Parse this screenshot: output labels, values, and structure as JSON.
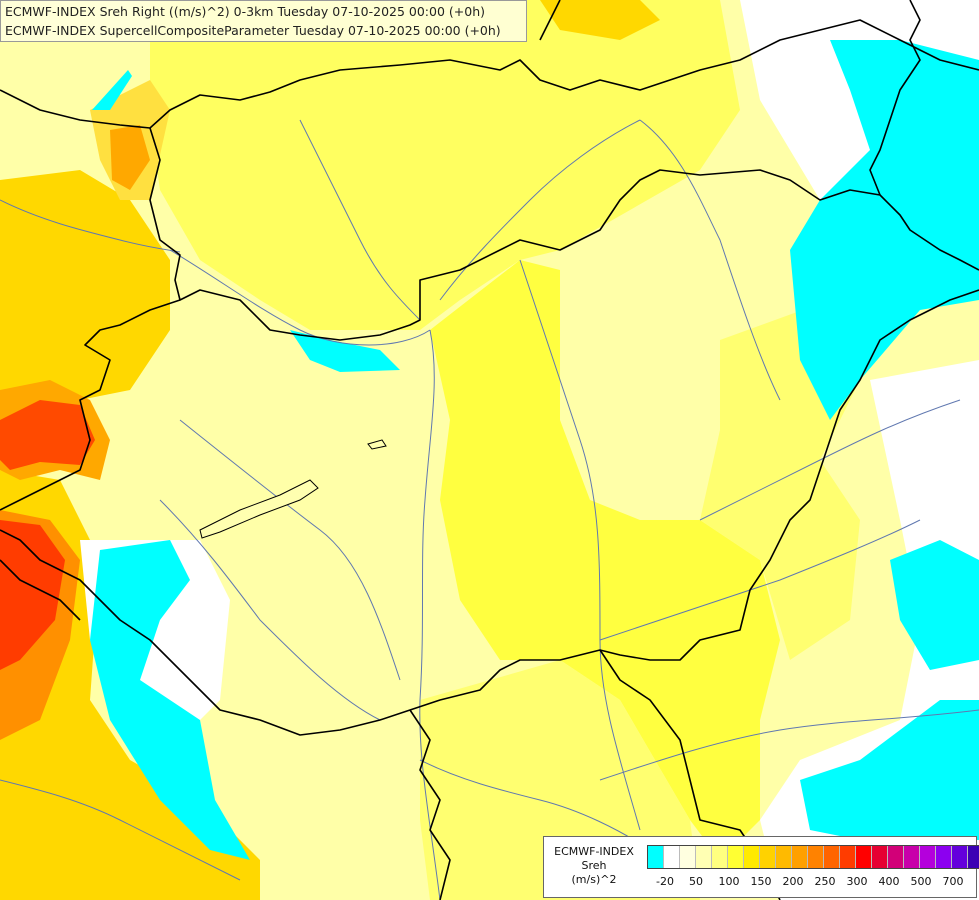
{
  "header": {
    "line1": "ECMWF-INDEX Sreh Right ((m/s)^2) 0-3km Tuesday 07-10-2025 00:00 (+0h)",
    "line2": "ECMWF-INDEX SupercellCompositeParameter Tuesday 07-10-2025 00:00 (+0h)"
  },
  "legend": {
    "source": "ECMWF-INDEX",
    "variable": "Sreh",
    "unit": "(m/s)^2",
    "colors": [
      "#00ffff",
      "#ffffff",
      "#ffffe0",
      "#ffffb3",
      "#ffff80",
      "#ffff33",
      "#ffea00",
      "#ffd200",
      "#ffba00",
      "#ffa000",
      "#ff8200",
      "#ff6400",
      "#ff3c00",
      "#ff0000",
      "#e60032",
      "#d20078",
      "#c800aa",
      "#b400dc",
      "#8c00f0",
      "#6400dc",
      "#3c00b4",
      "#140078"
    ],
    "labels": [
      "-20",
      "50",
      "100",
      "150",
      "200",
      "250",
      "300",
      "400",
      "500",
      "700"
    ]
  },
  "map": {
    "colors": {
      "cyan": "#00ffff",
      "white": "#ffffff",
      "pale_yellow": "#ffffb0",
      "light_yellow": "#ffff78",
      "yellow": "#ffff32",
      "gold": "#ffd800",
      "orange": "#ffa800",
      "dark_orange": "#ff8400",
      "red_orange": "#ff3c00",
      "border": "#000000",
      "river": "#6078b0"
    }
  }
}
